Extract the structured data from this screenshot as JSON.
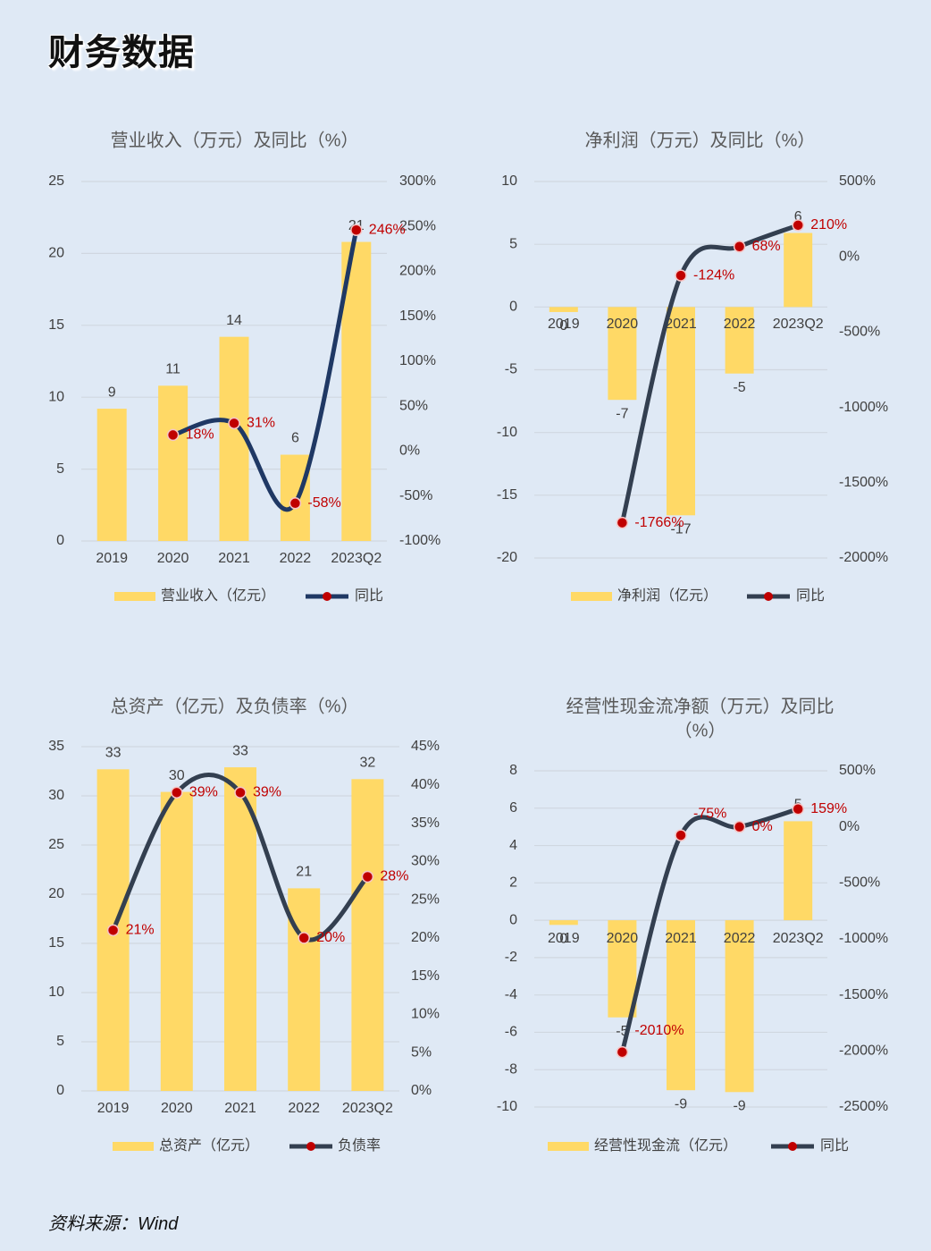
{
  "page": {
    "title": "财务数据",
    "source": "资料来源：Wind"
  },
  "colors": {
    "background": "#dfe9f5",
    "bar": "#ffd966",
    "line": "#1f3864",
    "line_alt": "#333f50",
    "marker": "#c00000",
    "label_red": "#c00000",
    "text": "#404040",
    "grid": "#d0d7e0"
  },
  "chart_data": [
    {
      "type": "bar+line",
      "title": "营业收入（万元）及同比（%）",
      "categories": [
        "2019",
        "2020",
        "2021",
        "2022",
        "2023Q2"
      ],
      "series": [
        {
          "name": "营业收入（亿元）",
          "axis": "left",
          "values": [
            9.2,
            10.8,
            14.2,
            6.0,
            20.8
          ],
          "labels": [
            "9",
            "11",
            "14",
            "6",
            "21"
          ]
        },
        {
          "name": "同比",
          "axis": "right",
          "values": [
            null,
            18,
            31,
            -58,
            246
          ],
          "labels": [
            "",
            "18%",
            "31%",
            "-58%",
            "246%"
          ]
        }
      ],
      "y_left": {
        "min": 0,
        "max": 25,
        "ticks": [
          0,
          5,
          10,
          15,
          20,
          25
        ],
        "tick_labels": [
          "0",
          "5",
          "10",
          "15",
          "20",
          "25"
        ]
      },
      "y_right": {
        "min": -100,
        "max": 300,
        "ticks": [
          -100,
          -50,
          0,
          50,
          100,
          150,
          200,
          250,
          300
        ],
        "tick_labels": [
          "-100%",
          "-50%",
          "0%",
          "50%",
          "100%",
          "150%",
          "200%",
          "250%",
          "300%"
        ]
      },
      "grid": true,
      "legend": "bottom"
    },
    {
      "type": "bar+line",
      "title": "净利润（万元）及同比（%）",
      "categories": [
        "2019",
        "2020",
        "2021",
        "2022",
        "2023Q2"
      ],
      "series": [
        {
          "name": "净利润（亿元）",
          "axis": "left",
          "values": [
            -0.4,
            -7.4,
            -16.6,
            -5.3,
            5.9
          ],
          "labels": [
            "0",
            "-7",
            "-17",
            "-5",
            "6"
          ]
        },
        {
          "name": "同比",
          "axis": "right",
          "values": [
            null,
            -1766,
            -124,
            68,
            210
          ],
          "labels": [
            "",
            "-1766%",
            "-124%",
            "68%",
            "210%"
          ]
        }
      ],
      "y_left": {
        "min": -20,
        "max": 10,
        "ticks": [
          -20,
          -15,
          -10,
          -5,
          0,
          5,
          10
        ],
        "tick_labels": [
          "-20",
          "-15",
          "-10",
          "-5",
          "0",
          "5",
          "10"
        ]
      },
      "y_right": {
        "min": -2000,
        "max": 500,
        "ticks": [
          -2000,
          -1500,
          -1000,
          -500,
          0,
          500
        ],
        "tick_labels": [
          "-2000%",
          "-1500%",
          "-1000%",
          "-500%",
          "0%",
          "500%"
        ]
      },
      "grid": true,
      "legend": "bottom"
    },
    {
      "type": "bar+line",
      "title": "总资产（亿元）及负债率（%）",
      "categories": [
        "2019",
        "2020",
        "2021",
        "2022",
        "2023Q2"
      ],
      "series": [
        {
          "name": "总资产（亿元）",
          "axis": "left",
          "values": [
            32.7,
            30.4,
            32.9,
            20.6,
            31.7
          ],
          "labels": [
            "33",
            "30",
            "33",
            "21",
            "32"
          ]
        },
        {
          "name": "负债率",
          "axis": "right",
          "values": [
            21,
            39,
            39,
            20,
            28
          ],
          "labels": [
            "21%",
            "39%",
            "39%",
            "20%",
            "28%"
          ]
        }
      ],
      "y_left": {
        "min": 0,
        "max": 35,
        "ticks": [
          0,
          5,
          10,
          15,
          20,
          25,
          30,
          35
        ],
        "tick_labels": [
          "0",
          "5",
          "10",
          "15",
          "20",
          "25",
          "30",
          "35"
        ]
      },
      "y_right": {
        "min": 0,
        "max": 45,
        "ticks": [
          0,
          5,
          10,
          15,
          20,
          25,
          30,
          35,
          40,
          45
        ],
        "tick_labels": [
          "0%",
          "5%",
          "10%",
          "15%",
          "20%",
          "25%",
          "30%",
          "35%",
          "40%",
          "45%"
        ]
      },
      "grid": true,
      "legend": "bottom"
    },
    {
      "type": "bar+line",
      "title": "经营性现金流净额（万元）及同比（%）",
      "categories": [
        "2019",
        "2020",
        "2021",
        "2022",
        "2023Q2"
      ],
      "series": [
        {
          "name": "经营性现金流（亿元）",
          "axis": "left",
          "values": [
            -0.25,
            -5.2,
            -9.1,
            -9.2,
            5.3
          ],
          "labels": [
            "0",
            "-5",
            "-9",
            "-9",
            "5"
          ]
        },
        {
          "name": "同比",
          "axis": "right",
          "values": [
            null,
            -2010,
            -75,
            0,
            159
          ],
          "labels": [
            "",
            "-2010%",
            "-75%",
            "0%",
            "159%"
          ]
        }
      ],
      "y_left": {
        "min": -10,
        "max": 8,
        "ticks": [
          -10,
          -8,
          -6,
          -4,
          -2,
          0,
          2,
          4,
          6,
          8
        ],
        "tick_labels": [
          "-10",
          "-8",
          "-6",
          "-4",
          "-2",
          "0",
          "2",
          "4",
          "6",
          "8"
        ]
      },
      "y_right": {
        "min": -2500,
        "max": 500,
        "ticks": [
          -2500,
          -2000,
          -1500,
          -1000,
          -500,
          0,
          500
        ],
        "tick_labels": [
          "-2500%",
          "-2000%",
          "-1500%",
          "-1000%",
          "-500%",
          "0%",
          "500%"
        ]
      },
      "grid": true,
      "legend": "bottom"
    }
  ]
}
